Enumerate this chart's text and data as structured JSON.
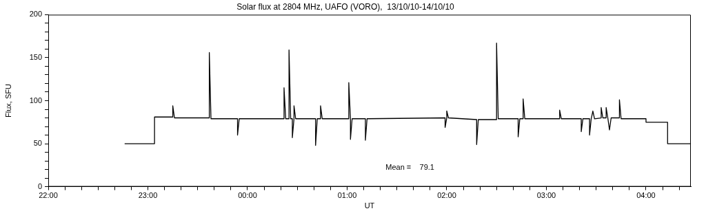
{
  "chart_data": {
    "type": "line",
    "title": "Solar flux at 2804 MHz, UAFO (VORO),  13/10/10-14/10/10",
    "xlabel": "UT",
    "ylabel": "Flux, SFU",
    "annotations": [
      "Mean =    79.1"
    ],
    "color": "#000000",
    "marker": "none",
    "legend": false,
    "xlim": [
      "--10-13T22:00",
      "--10-14T04:27"
    ],
    "ylim": [
      0,
      200
    ],
    "xticks": [
      {
        "value": "--10-13T22:00",
        "label": "22:00"
      },
      {
        "value": "--10-13T22:10",
        "label": null
      },
      {
        "value": "--10-13T22:20",
        "label": null
      },
      {
        "value": "--10-13T22:30",
        "label": null
      },
      {
        "value": "--10-13T22:40",
        "label": null
      },
      {
        "value": "--10-13T22:50",
        "label": null
      },
      {
        "value": "--10-13T23:00",
        "label": "23:00"
      },
      {
        "value": "--10-13T23:10",
        "label": null
      },
      {
        "value": "--10-13T23:20",
        "label": null
      },
      {
        "value": "--10-13T23:30",
        "label": null
      },
      {
        "value": "--10-13T23:40",
        "label": null
      },
      {
        "value": "--10-13T23:50",
        "label": null
      },
      {
        "value": "--10-14T00:00",
        "label": "00:00"
      },
      {
        "value": "--10-14T00:10",
        "label": null
      },
      {
        "value": "--10-14T00:20",
        "label": null
      },
      {
        "value": "--10-14T00:30",
        "label": null
      },
      {
        "value": "--10-14T00:40",
        "label": null
      },
      {
        "value": "--10-14T00:50",
        "label": null
      },
      {
        "value": "--10-14T01:00",
        "label": "01:00"
      },
      {
        "value": "--10-14T01:10",
        "label": null
      },
      {
        "value": "--10-14T01:20",
        "label": null
      },
      {
        "value": "--10-14T01:30",
        "label": null
      },
      {
        "value": "--10-14T01:40",
        "label": null
      },
      {
        "value": "--10-14T01:50",
        "label": null
      },
      {
        "value": "--10-14T02:00",
        "label": "02:00"
      },
      {
        "value": "--10-14T02:10",
        "label": null
      },
      {
        "value": "--10-14T02:20",
        "label": null
      },
      {
        "value": "--10-14T02:30",
        "label": null
      },
      {
        "value": "--10-14T02:40",
        "label": null
      },
      {
        "value": "--10-14T02:50",
        "label": null
      },
      {
        "value": "--10-14T03:00",
        "label": "03:00"
      },
      {
        "value": "--10-14T03:10",
        "label": null
      },
      {
        "value": "--10-14T03:20",
        "label": null
      },
      {
        "value": "--10-14T03:30",
        "label": null
      },
      {
        "value": "--10-14T03:40",
        "label": null
      },
      {
        "value": "--10-14T03:50",
        "label": null
      },
      {
        "value": "--10-14T04:00",
        "label": "04:00"
      },
      {
        "value": "--10-14T04:10",
        "label": null
      },
      {
        "value": "--10-14T04:20",
        "label": null
      }
    ],
    "yticks": [
      0,
      {
        "value": 10,
        "label": null
      },
      {
        "value": 20,
        "label": null
      },
      {
        "value": 30,
        "label": null
      },
      {
        "value": 40,
        "label": null
      },
      50,
      {
        "value": 60,
        "label": null
      },
      {
        "value": 70,
        "label": null
      },
      {
        "value": 80,
        "label": null
      },
      {
        "value": 90,
        "label": null
      },
      100,
      {
        "value": 110,
        "label": null
      },
      {
        "value": 120,
        "label": null
      },
      {
        "value": 130,
        "label": null
      },
      {
        "value": 140,
        "label": null
      },
      150,
      {
        "value": 160,
        "label": null
      },
      {
        "value": 170,
        "label": null
      },
      {
        "value": 180,
        "label": null
      },
      {
        "value": 190,
        "label": null
      },
      200
    ],
    "x": [
      "--10-13T22:46",
      "--10-13T23:04",
      "--10-13T23:04",
      "--10-13T23:15",
      "--10-13T23:15",
      "--10-13T23:16",
      "--10-13T23:37",
      "--10-13T23:37",
      "--10-13T23:38",
      "--10-13T23:54",
      "--10-13T23:54",
      "--10-13T23:55",
      "--10-14T00:22",
      "--10-14T00:22",
      "--10-14T00:23",
      "--10-14T00:25",
      "--10-14T00:25",
      "--10-14T00:26",
      "--10-14T00:27",
      "--10-14T00:27",
      "--10-14T00:28",
      "--10-14T00:28",
      "--10-14T00:29",
      "--10-14T00:41",
      "--10-14T00:41",
      "--10-14T00:42",
      "--10-14T00:44",
      "--10-14T00:44",
      "--10-14T00:45",
      "--10-14T01:01",
      "--10-14T01:01",
      "--10-14T01:02",
      "--10-14T01:02",
      "--10-14T01:03",
      "--10-14T01:11",
      "--10-14T01:11",
      "--10-14T01:12",
      "--10-14T01:59",
      "--10-14T01:59",
      "--10-14T02:00",
      "--10-14T02:00",
      "--10-14T02:01",
      "--10-14T02:18",
      "--10-14T02:18",
      "--10-14T02:19",
      "--10-14T02:30",
      "--10-14T02:30",
      "--10-14T02:31",
      "--10-14T02:43",
      "--10-14T02:43",
      "--10-14T02:44",
      "--10-14T02:46",
      "--10-14T02:46",
      "--10-14T02:47",
      "--10-14T03:08",
      "--10-14T03:08",
      "--10-14T03:09",
      "--10-14T03:21",
      "--10-14T03:21",
      "--10-14T03:22",
      "--10-14T03:26",
      "--10-14T03:26",
      "--10-14T03:27",
      "--10-14T03:28",
      "--10-14T03:29",
      "--10-14T03:33",
      "--10-14T03:33",
      "--10-14T03:34",
      "--10-14T03:36",
      "--10-14T03:36",
      "--10-14T03:37",
      "--10-14T03:38",
      "--10-14T03:39",
      "--10-14T03:44",
      "--10-14T03:44",
      "--10-14T03:45",
      "--10-14T04:00",
      "--10-14T04:00",
      "--10-14T04:13",
      "--10-14T04:13",
      "--10-14T04:27"
    ],
    "values": [
      50,
      50,
      81,
      81,
      94,
      80,
      80,
      156,
      79,
      79,
      60,
      79,
      79,
      115,
      79,
      79,
      159,
      79,
      79,
      57,
      79,
      94,
      79,
      79,
      48,
      79,
      79,
      94,
      79,
      79,
      121,
      79,
      55,
      79,
      79,
      54,
      79,
      80,
      69,
      80,
      88,
      80,
      78,
      49,
      78,
      78,
      167,
      79,
      79,
      58,
      79,
      79,
      102,
      79,
      79,
      89,
      79,
      79,
      64,
      79,
      79,
      60,
      79,
      88,
      79,
      80,
      92,
      80,
      80,
      92,
      80,
      66,
      80,
      80,
      101,
      79,
      79,
      75,
      75,
      50,
      50
    ]
  }
}
